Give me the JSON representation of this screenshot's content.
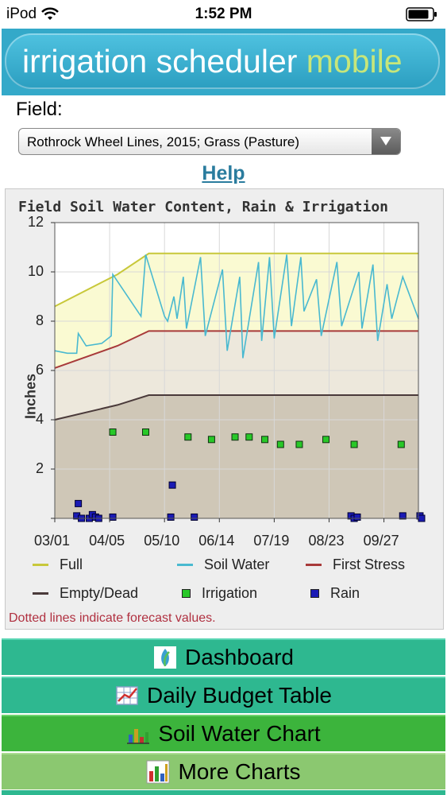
{
  "status_bar": {
    "carrier": "iPod",
    "time": "1:52 PM"
  },
  "banner": {
    "title_main": "irrigation scheduler ",
    "title_accent": "mobile"
  },
  "field": {
    "label": "Field:",
    "selected": "Rothrock Wheel Lines, 2015; Grass (Pasture)"
  },
  "help": {
    "label": "Help"
  },
  "colors": {
    "full": "#c8c83a",
    "soil_water": "#49b9d0",
    "first_stress": "#a83a3a",
    "empty_dead": "#4a3a3a",
    "irrigation": "#28c828",
    "rain": "#1a1ab4"
  },
  "chart_data": {
    "type": "line",
    "title": "Field Soil Water Content, Rain & Irrigation",
    "ylabel": "Inches",
    "ylim": [
      0,
      12
    ],
    "yticks": [
      "12",
      "10",
      "8",
      "6",
      "4",
      "2"
    ],
    "x_ticks": [
      "03/01",
      "04/05",
      "05/10",
      "06/14",
      "07/19",
      "08/23",
      "09/27"
    ],
    "x_range_days": [
      0,
      232
    ],
    "series": [
      {
        "name": "Full",
        "x": [
          0,
          40,
          60,
          232
        ],
        "y": [
          8.6,
          9.9,
          10.75,
          10.75
        ]
      },
      {
        "name": "First Stress",
        "x": [
          0,
          40,
          60,
          232
        ],
        "y": [
          6.1,
          7.0,
          7.6,
          7.6
        ]
      },
      {
        "name": "Empty/Dead",
        "x": [
          0,
          40,
          60,
          232
        ],
        "y": [
          4.0,
          4.6,
          5.0,
          5.0
        ]
      },
      {
        "name": "Soil Water",
        "x": [
          0,
          8,
          14,
          15,
          20,
          30,
          36,
          37,
          55,
          58,
          70,
          72,
          76,
          78,
          82,
          84,
          93,
          96,
          107,
          110,
          118,
          120,
          130,
          132,
          137,
          140,
          148,
          151,
          157,
          159,
          167,
          170,
          180,
          183,
          194,
          196,
          203,
          206,
          212,
          215,
          222,
          232
        ],
        "y": [
          6.8,
          6.7,
          6.7,
          7.5,
          7.0,
          7.1,
          7.4,
          9.9,
          8.2,
          10.7,
          8.2,
          8.0,
          9.0,
          8.1,
          9.8,
          7.7,
          10.6,
          7.4,
          10.1,
          6.8,
          9.8,
          6.5,
          10.4,
          7.2,
          10.6,
          7.3,
          10.7,
          7.8,
          10.6,
          8.4,
          9.7,
          7.4,
          10.4,
          7.8,
          10.0,
          7.7,
          10.3,
          7.2,
          9.5,
          8.1,
          9.8,
          8.1
        ]
      },
      {
        "name": "Irrigation",
        "x": [
          37,
          58,
          85,
          100,
          115,
          124,
          134,
          144,
          156,
          173,
          191,
          221
        ],
        "y": [
          3.5,
          3.5,
          3.3,
          3.2,
          3.3,
          3.3,
          3.2,
          3.0,
          3.0,
          3.2,
          3.0,
          3.0
        ]
      },
      {
        "name": "Rain",
        "x": [
          14,
          15,
          17,
          22,
          24,
          26,
          28,
          37,
          74,
          75,
          89,
          189,
          191,
          193,
          222,
          233,
          235
        ],
        "y": [
          0.1,
          0.6,
          0.0,
          0.0,
          0.15,
          0.05,
          0.0,
          0.05,
          0.05,
          1.35,
          0.05,
          0.1,
          0.0,
          0.05,
          0.1,
          0.1,
          0.0
        ]
      }
    ],
    "legend": [
      "Full",
      "Soil Water",
      "First Stress",
      "Empty/Dead",
      "Irrigation",
      "Rain"
    ],
    "note": "Dotted lines indicate forecast values."
  },
  "nav": {
    "dashboard": "Dashboard",
    "budget": "Daily Budget Table",
    "soil": "Soil Water Chart",
    "more": "More Charts"
  }
}
